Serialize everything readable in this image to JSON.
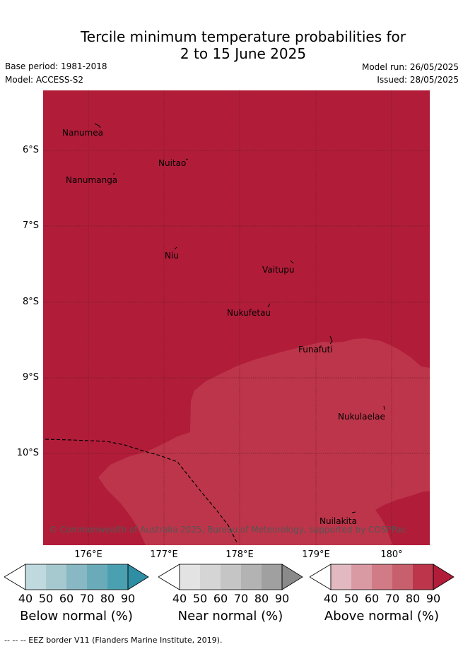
{
  "title": {
    "line1": "Tercile minimum temperature probabilities for",
    "line2": "2 to 15 June 2025"
  },
  "meta": {
    "base_period": "Base period: 1981-2018",
    "model": "Model: ACCESS-S2",
    "model_run": "Model run: 26/05/2025",
    "issued": "Issued: 28/05/2025"
  },
  "map": {
    "lat_labels": [
      "6°S",
      "7°S",
      "8°S",
      "9°S",
      "10°S"
    ],
    "lon_labels": [
      "176°E",
      "177°E",
      "178°E",
      "179°E",
      "180°"
    ],
    "islands": [
      {
        "name": "Nanumea"
      },
      {
        "name": "Nuitao"
      },
      {
        "name": "Nanumanga"
      },
      {
        "name": "Niu"
      },
      {
        "name": "Vaitupu"
      },
      {
        "name": "Nukufetau"
      },
      {
        "name": "Funafuti"
      },
      {
        "name": "Nukulaelae"
      },
      {
        "name": "Nuilakita"
      }
    ],
    "copyright": "© Commonwealth of Australia 2025, Bureau of Meteorology, supported by COSPPac",
    "fill_colors": {
      "above_90": "#b11d39",
      "above_80": "#bd354a"
    }
  },
  "legends": [
    {
      "title": "Below normal (%)",
      "ticks": [
        "40",
        "50",
        "60",
        "70",
        "80",
        "90"
      ],
      "colors": [
        "#ffffff",
        "#bfd9df",
        "#a6c9cf",
        "#88b8c4",
        "#6aabb9",
        "#4aa0b1",
        "#2e8ea4"
      ]
    },
    {
      "title": "Near normal (%)",
      "ticks": [
        "40",
        "50",
        "60",
        "70",
        "80",
        "90"
      ],
      "colors": [
        "#ffffff",
        "#e3e3e3",
        "#d5d5d5",
        "#c5c5c5",
        "#b3b3b3",
        "#a0a0a0",
        "#8a8a8a"
      ]
    },
    {
      "title": "Above normal (%)",
      "ticks": [
        "40",
        "50",
        "60",
        "70",
        "80",
        "90"
      ],
      "colors": [
        "#ffffff",
        "#e2b9c0",
        "#d99aa3",
        "#d07b85",
        "#c75f6c",
        "#bd354a",
        "#b11d39"
      ]
    }
  ],
  "footer": "-- -- -- EEZ border V11 (Flanders Marine Institute, 2019)."
}
